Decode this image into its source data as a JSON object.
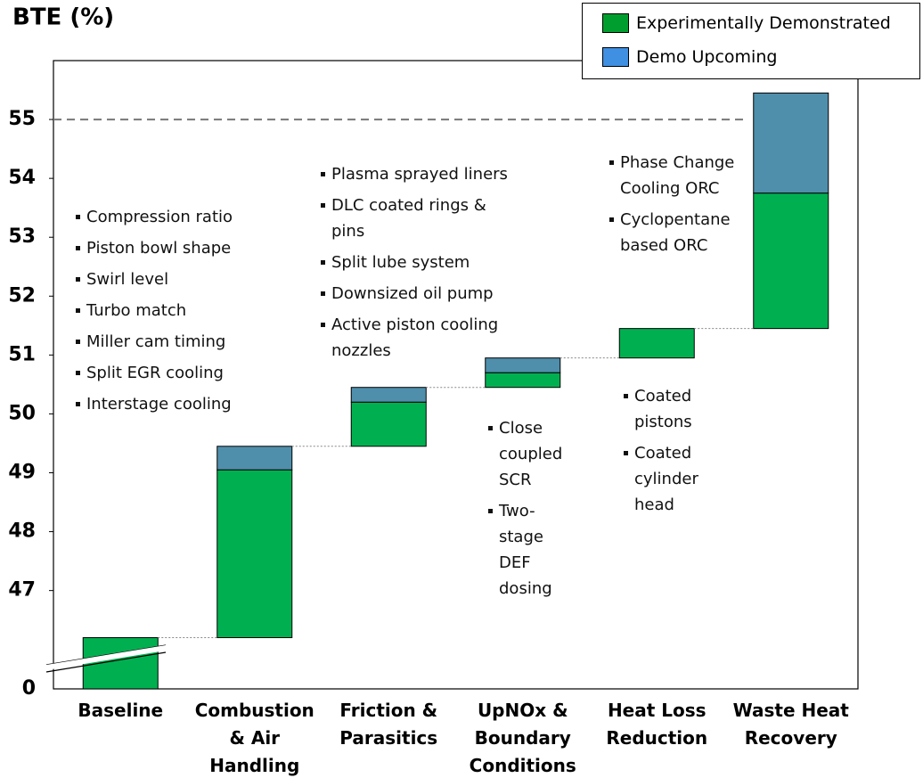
{
  "chart_data": {
    "type": "waterfall",
    "y_title": "BTE (%)",
    "categories": [
      "Baseline",
      "Combustion\n& Air\nHandling",
      "Friction &\nParasitics",
      "UpNOx &\nBoundary\nConditions",
      "Heat Loss\nReduction",
      "Waste Heat\nRecovery"
    ],
    "series": [
      {
        "name": "Experimentally Demonstrated",
        "color": "#00b050",
        "legend_color": "#009e2e",
        "values": [
          46.2,
          2.85,
          0.75,
          0.25,
          0.5,
          2.3
        ]
      },
      {
        "name": "Demo Upcoming",
        "color": "#4f8fab",
        "legend_color": "#3f8fe2",
        "values": [
          null,
          0.4,
          0.25,
          0.25,
          null,
          1.7
        ]
      }
    ],
    "ylim": [
      45.33,
      56
    ],
    "yticks": [
      47,
      48,
      49,
      50,
      51,
      52,
      53,
      54,
      55
    ],
    "axis_break_value": 0,
    "reference_line": 55,
    "annotations": [
      [
        "Compression ratio",
        "Piston bowl shape",
        "Swirl level",
        "Turbo match",
        "Miller cam timing",
        "Split EGR cooling",
        "Interstage cooling"
      ],
      [
        "Plasma sprayed liners",
        "DLC coated rings &\npins",
        "Split lube system",
        "Downsized oil pump",
        "Active piston cooling\nnozzles"
      ],
      [
        "Close\ncoupled\nSCR",
        "Two-stage\nDEF\ndosing"
      ],
      [
        "Coated\npistons",
        "Coated\ncylinder\nhead"
      ],
      [
        "Phase Change\nCooling ORC",
        "Cyclopentane\nbased ORC"
      ]
    ]
  }
}
